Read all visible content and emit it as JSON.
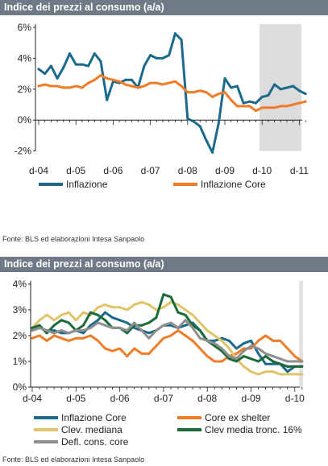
{
  "chart_data": [
    {
      "type": "line",
      "title": "Indice dei prezzi al consumo (a/a)",
      "ylim": [
        -2,
        6
      ],
      "yticks": [
        "-2%",
        "0%",
        "2%",
        "4%",
        "6%"
      ],
      "x_tick_labels": [
        "d-04",
        "d-05",
        "d-06",
        "d-07",
        "d-08",
        "d-09",
        "d-10",
        "d-11"
      ],
      "shaded_period": {
        "from": "d-10",
        "to": "d-11 (+2 mesi)",
        "meaning": "forecast"
      },
      "grid": false,
      "legend": "bottom",
      "series": [
        {
          "name": "Inflazione",
          "color": "#1b6a8c",
          "x": [
            "d-04",
            "f-05",
            "a-05",
            "g-05",
            "a-05",
            "o-05",
            "d-05",
            "f-06",
            "a-06",
            "g-06",
            "a-06",
            "o-06",
            "d-06",
            "f-07",
            "a-07",
            "g-07",
            "a-07",
            "o-07",
            "d-07",
            "f-08",
            "a-08",
            "g-08",
            "a-08",
            "o-08",
            "d-08",
            "f-09",
            "a-09",
            "g-09",
            "a-09",
            "o-09",
            "d-09",
            "f-10",
            "a-10",
            "g-10",
            "a-10",
            "o-10",
            "d-10",
            "f-11",
            "a-11",
            "g-11",
            "a-11",
            "o-11",
            "d-11",
            "f-12"
          ],
          "values": [
            3.3,
            3.0,
            3.5,
            2.7,
            3.4,
            4.3,
            3.6,
            3.6,
            3.5,
            4.3,
            3.8,
            1.3,
            2.5,
            2.4,
            2.6,
            2.6,
            2.1,
            3.5,
            4.2,
            4.0,
            4.0,
            4.2,
            5.6,
            5.2,
            0.1,
            -0.1,
            -0.4,
            -1.3,
            -2.1,
            -0.2,
            2.7,
            2.1,
            2.2,
            1.1,
            1.2,
            1.1,
            1.5,
            1.6,
            2.3,
            2.0,
            2.1,
            2.2,
            1.9,
            1.7
          ]
        },
        {
          "name": "Inflazione Core",
          "color": "#f07c28",
          "x": [
            "d-04",
            "f-05",
            "a-05",
            "g-05",
            "a-05",
            "o-05",
            "d-05",
            "f-06",
            "a-06",
            "g-06",
            "a-06",
            "o-06",
            "d-06",
            "f-07",
            "a-07",
            "g-07",
            "a-07",
            "o-07",
            "d-07",
            "f-08",
            "a-08",
            "g-08",
            "a-08",
            "o-08",
            "d-08",
            "f-09",
            "a-09",
            "g-09",
            "a-09",
            "o-09",
            "d-09",
            "f-10",
            "a-10",
            "g-10",
            "a-10",
            "o-10",
            "d-10",
            "f-11",
            "a-11",
            "g-11",
            "a-11",
            "o-11",
            "d-11",
            "f-12"
          ],
          "values": [
            2.2,
            2.3,
            2.2,
            2.2,
            2.1,
            2.1,
            2.2,
            2.1,
            2.4,
            2.6,
            2.9,
            2.7,
            2.6,
            2.5,
            2.3,
            2.2,
            2.1,
            2.2,
            2.4,
            2.4,
            2.3,
            2.4,
            2.5,
            2.2,
            1.8,
            1.8,
            1.9,
            1.8,
            1.5,
            1.7,
            1.8,
            1.3,
            0.9,
            0.9,
            0.9,
            0.6,
            0.8,
            0.8,
            0.8,
            0.9,
            0.9,
            1.0,
            1.1,
            1.2
          ]
        }
      ]
    },
    {
      "type": "line",
      "title": "Indice dei prezzi al consumo (a/a)",
      "ylim": [
        0,
        4
      ],
      "yticks": [
        "0%",
        "1%",
        "2%",
        "3%",
        "4%"
      ],
      "x_tick_labels": [
        "d-04",
        "d-05",
        "d-06",
        "d-07",
        "d-08",
        "d-09",
        "d-10"
      ],
      "grid": false,
      "legend": "bottom",
      "series": [
        {
          "name": "Inflazione Core",
          "color": "#1b6a8c",
          "x": [
            "d-04",
            "f-05",
            "a-05",
            "g-05",
            "a-05",
            "o-05",
            "d-05",
            "f-06",
            "a-06",
            "g-06",
            "a-06",
            "o-06",
            "d-06",
            "f-07",
            "a-07",
            "g-07",
            "a-07",
            "o-07",
            "d-07",
            "f-08",
            "a-08",
            "g-08",
            "a-08",
            "o-08",
            "d-08",
            "f-09",
            "a-09",
            "g-09",
            "a-09",
            "o-09",
            "d-09",
            "f-10",
            "a-10",
            "g-10",
            "a-10",
            "o-10",
            "d-10",
            "f-11"
          ],
          "values": [
            2.2,
            2.3,
            2.2,
            2.2,
            2.1,
            2.1,
            2.2,
            2.1,
            2.4,
            2.6,
            2.9,
            2.7,
            2.6,
            2.5,
            2.3,
            2.2,
            2.1,
            2.2,
            2.4,
            2.4,
            2.3,
            2.4,
            2.5,
            2.2,
            1.8,
            1.8,
            1.9,
            1.8,
            1.5,
            1.7,
            1.8,
            1.3,
            0.9,
            0.9,
            0.9,
            0.6,
            0.8,
            0.8
          ]
        },
        {
          "name": "Core ex shelter",
          "color": "#f07c28",
          "x": [
            "d-04",
            "f-05",
            "a-05",
            "g-05",
            "a-05",
            "o-05",
            "d-05",
            "f-06",
            "a-06",
            "g-06",
            "a-06",
            "o-06",
            "d-06",
            "f-07",
            "a-07",
            "g-07",
            "a-07",
            "o-07",
            "d-07",
            "f-08",
            "a-08",
            "g-08",
            "a-08",
            "o-08",
            "d-08",
            "f-09",
            "a-09",
            "g-09",
            "a-09",
            "o-09",
            "d-09",
            "f-10",
            "a-10",
            "g-10",
            "a-10",
            "o-10",
            "d-10",
            "f-11"
          ],
          "values": [
            1.9,
            2.0,
            1.8,
            2.0,
            1.9,
            1.8,
            1.9,
            1.9,
            2.0,
            1.8,
            1.5,
            1.4,
            1.5,
            1.2,
            1.5,
            1.3,
            1.3,
            1.6,
            1.9,
            2.0,
            2.2,
            2.0,
            1.8,
            1.5,
            1.2,
            1.0,
            1.0,
            1.2,
            1.3,
            1.5,
            1.5,
            1.8,
            2.0,
            1.8,
            1.8,
            1.5,
            1.2,
            1.0
          ]
        },
        {
          "name": "Clev. mediana",
          "color": "#e0c36a",
          "x": [
            "d-04",
            "f-05",
            "a-05",
            "g-05",
            "a-05",
            "o-05",
            "d-05",
            "f-06",
            "a-06",
            "g-06",
            "a-06",
            "o-06",
            "d-06",
            "f-07",
            "a-07",
            "g-07",
            "a-07",
            "o-07",
            "d-07",
            "f-08",
            "a-08",
            "g-08",
            "a-08",
            "o-08",
            "d-08",
            "f-09",
            "a-09",
            "g-09",
            "a-09",
            "o-09",
            "d-09",
            "f-10",
            "a-10",
            "g-10",
            "a-10",
            "o-10",
            "d-10",
            "f-11"
          ],
          "values": [
            2.3,
            2.6,
            2.8,
            2.6,
            2.8,
            2.9,
            2.6,
            2.9,
            2.8,
            3.1,
            3.2,
            3.1,
            3.1,
            3.0,
            3.2,
            3.3,
            3.2,
            3.0,
            3.1,
            3.3,
            3.2,
            3.0,
            2.8,
            2.5,
            2.2,
            2.0,
            1.8,
            1.5,
            1.1,
            0.8,
            0.6,
            0.5,
            0.6,
            0.6,
            0.5,
            0.5,
            0.5,
            0.5
          ]
        },
        {
          "name": "Clev media tronc. 16%",
          "color": "#1b6b3a",
          "x": [
            "d-04",
            "f-05",
            "a-05",
            "g-05",
            "a-05",
            "o-05",
            "d-05",
            "f-06",
            "a-06",
            "g-06",
            "a-06",
            "o-06",
            "d-06",
            "f-07",
            "a-07",
            "g-07",
            "a-07",
            "o-07",
            "d-07",
            "f-08",
            "a-08",
            "g-08",
            "a-08",
            "o-08",
            "d-08",
            "f-09",
            "a-09",
            "g-09",
            "a-09",
            "o-09",
            "d-09",
            "f-10",
            "a-10",
            "g-10",
            "a-10",
            "o-10",
            "d-10",
            "f-11"
          ],
          "values": [
            2.3,
            2.4,
            2.1,
            2.4,
            2.6,
            2.5,
            2.2,
            2.4,
            2.9,
            2.8,
            2.6,
            2.3,
            2.3,
            2.1,
            2.4,
            2.4,
            2.5,
            2.7,
            3.6,
            3.5,
            2.9,
            2.8,
            2.4,
            2.2,
            1.8,
            1.6,
            1.4,
            1.1,
            1.0,
            1.2,
            1.1,
            1.0,
            1.2,
            1.0,
            0.9,
            0.8,
            0.8,
            0.8
          ]
        },
        {
          "name": "Defl. cons. core",
          "color": "#8f8f8f",
          "x": [
            "d-04",
            "f-05",
            "a-05",
            "g-05",
            "a-05",
            "o-05",
            "d-05",
            "f-06",
            "a-06",
            "g-06",
            "a-06",
            "o-06",
            "d-06",
            "f-07",
            "a-07",
            "g-07",
            "a-07",
            "o-07",
            "d-07",
            "f-08",
            "a-08",
            "g-08",
            "a-08",
            "o-08",
            "d-08",
            "f-09",
            "a-09",
            "g-09",
            "a-09",
            "o-09",
            "d-09",
            "f-10",
            "a-10",
            "g-10",
            "a-10",
            "o-10",
            "d-10",
            "f-11"
          ],
          "values": [
            2.2,
            2.3,
            2.2,
            2.1,
            2.2,
            2.1,
            2.2,
            2.2,
            2.3,
            2.5,
            2.4,
            2.3,
            2.3,
            2.2,
            2.5,
            2.2,
            1.9,
            2.2,
            2.4,
            2.5,
            2.3,
            2.6,
            2.3,
            1.9,
            1.8,
            1.7,
            1.5,
            1.2,
            1.1,
            1.4,
            1.6,
            1.5,
            1.3,
            1.2,
            1.1,
            1.0,
            1.0,
            1.0
          ]
        }
      ]
    }
  ],
  "panel1": {
    "header": "Indice dei prezzi al consumo (a/a)",
    "source": "Fonte: BLS ed elaborazioni Intesa Sanpaolo"
  },
  "panel2": {
    "header": "Indice dei prezzi al consumo (a/a)",
    "source": "Fonte: BLS ed elaborazioni Intesa Sanpaolo"
  }
}
